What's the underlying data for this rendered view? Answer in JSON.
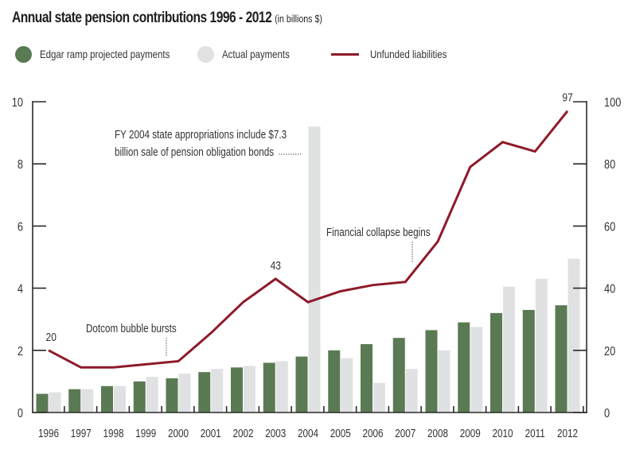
{
  "colors": {
    "projected": "#5a7a53",
    "actual": "#e0e1e3",
    "line": "#8e1a2a",
    "axis": "#2a2a2a"
  },
  "chart_data": {
    "type": "bar",
    "title": "Annual state pension contributions 1996 - 2012",
    "subtitle": "(in billions $)",
    "categories": [
      "1996",
      "1997",
      "1998",
      "1999",
      "2000",
      "2001",
      "2002",
      "2003",
      "2004",
      "2005",
      "2006",
      "2007",
      "2008",
      "2009",
      "2010",
      "2011",
      "2012"
    ],
    "series": [
      {
        "name": "Edgar ramp projected payments",
        "type": "bar",
        "axis": "left",
        "values": [
          0.6,
          0.75,
          0.85,
          1.0,
          1.1,
          1.3,
          1.45,
          1.6,
          1.8,
          2.0,
          2.2,
          2.4,
          2.65,
          2.9,
          3.2,
          3.3,
          3.45
        ]
      },
      {
        "name": "Actual payments",
        "type": "bar",
        "axis": "left",
        "values": [
          0.65,
          0.75,
          0.85,
          1.15,
          1.25,
          1.4,
          1.5,
          1.65,
          9.2,
          1.75,
          0.95,
          1.4,
          2.0,
          2.75,
          4.05,
          4.3,
          4.95
        ]
      },
      {
        "name": "Unfunded liabilities",
        "type": "line",
        "axis": "right",
        "values": [
          20,
          14.5,
          14.5,
          15.5,
          16.5,
          25.5,
          35.5,
          43,
          35.5,
          39,
          41,
          42,
          55,
          79,
          87,
          84,
          97
        ]
      }
    ],
    "left_axis": {
      "ylim": [
        0,
        10
      ],
      "ticks": [
        "0",
        "2",
        "4",
        "6",
        "8",
        "10"
      ]
    },
    "right_axis": {
      "ylim": [
        0,
        100
      ],
      "ticks": [
        "0",
        "20",
        "40",
        "60",
        "80",
        "100"
      ]
    },
    "data_labels": [
      {
        "category": "1996",
        "text": "20"
      },
      {
        "category": "2003",
        "text": "43"
      },
      {
        "category": "2012",
        "text": "97"
      }
    ],
    "annotations": [
      {
        "category": "2004",
        "lines": [
          "FY 2004 state appropriations include $7.3",
          "billion sale of pension obligation bonds"
        ]
      },
      {
        "category": "2000",
        "lines": [
          "Dotcom bubble bursts"
        ]
      },
      {
        "category": "2007",
        "lines": [
          "Financial collapse begins"
        ]
      }
    ],
    "legend": "top-left",
    "grid": false
  }
}
